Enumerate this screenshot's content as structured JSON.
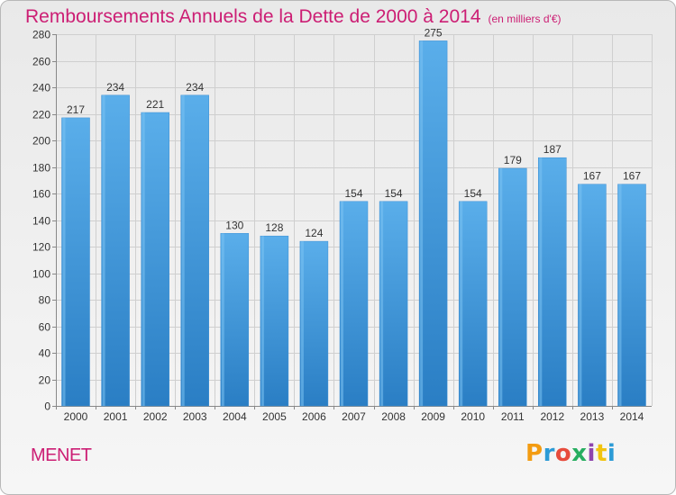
{
  "title": {
    "main": "Remboursements Annuels de la Dette de 2000 à 2014",
    "unit": "(en milliers d'€)"
  },
  "city": "MENET",
  "logo": {
    "text": "Proxiti",
    "colors": [
      "#f39c12",
      "#2c9bd6",
      "#e74c3c",
      "#27ae60",
      "#8e44ad",
      "#f1c40f",
      "#2c9bd6"
    ]
  },
  "colors": {
    "bar": "#4a9fe0",
    "bar_dark": "#2a7ec4",
    "accent": "#cc1e74",
    "grid": "#cfcfcf"
  },
  "chart_data": {
    "type": "bar",
    "title": "Remboursements Annuels de la Dette de 2000 à 2014",
    "subtitle": "(en milliers d'€)",
    "categories": [
      "2000",
      "2001",
      "2002",
      "2003",
      "2004",
      "2005",
      "2006",
      "2007",
      "2008",
      "2009",
      "2010",
      "2011",
      "2012",
      "2013",
      "2014"
    ],
    "values": [
      217,
      234,
      221,
      234,
      130,
      128,
      124,
      154,
      154,
      275,
      154,
      179,
      187,
      167,
      167
    ],
    "ylim": [
      0,
      280
    ],
    "yticks": [
      0,
      20,
      40,
      60,
      80,
      100,
      120,
      140,
      160,
      180,
      200,
      220,
      240,
      260,
      280
    ],
    "grid": true,
    "data_labels": true
  }
}
